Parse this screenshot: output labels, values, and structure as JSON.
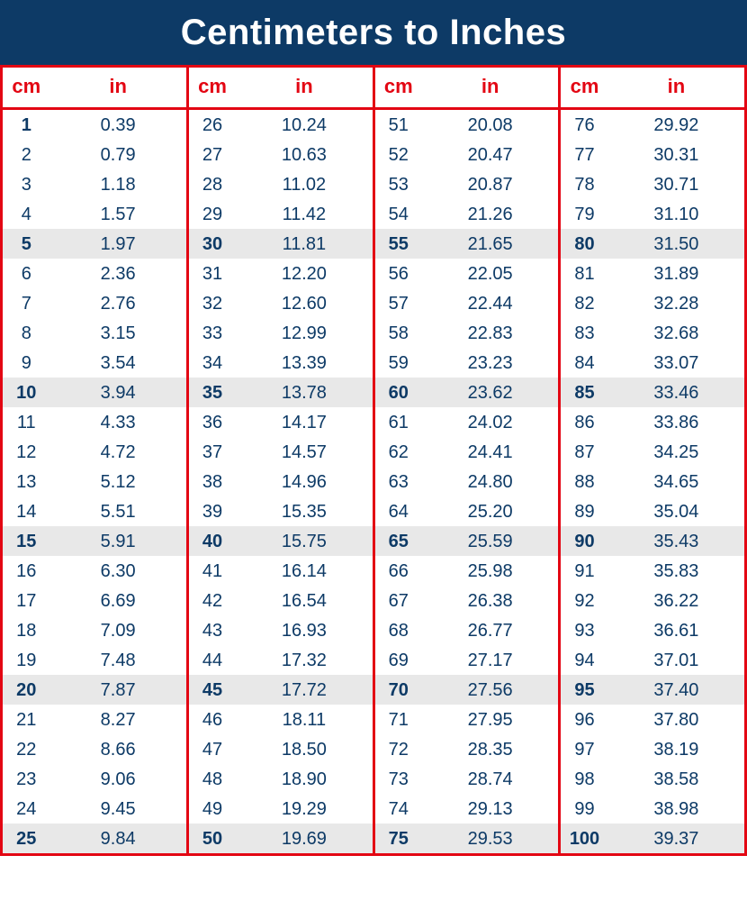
{
  "title": "Centimeters to Inches",
  "colors": {
    "header_bg": "#0d3a66",
    "header_text": "#ffffff",
    "border": "#e30613",
    "th_text": "#e30613",
    "cell_text": "#0d3a66",
    "highlight_bg": "#e8e8e8",
    "row_bg": "#ffffff"
  },
  "headers": {
    "cm": "cm",
    "in": "in"
  },
  "columns": [
    {
      "rows": [
        {
          "cm": "1",
          "in": "0.39",
          "hl": false,
          "bold": true
        },
        {
          "cm": "2",
          "in": "0.79",
          "hl": false,
          "bold": false
        },
        {
          "cm": "3",
          "in": "1.18",
          "hl": false,
          "bold": false
        },
        {
          "cm": "4",
          "in": "1.57",
          "hl": false,
          "bold": false
        },
        {
          "cm": "5",
          "in": "1.97",
          "hl": true,
          "bold": true
        },
        {
          "cm": "6",
          "in": "2.36",
          "hl": false,
          "bold": false
        },
        {
          "cm": "7",
          "in": "2.76",
          "hl": false,
          "bold": false
        },
        {
          "cm": "8",
          "in": "3.15",
          "hl": false,
          "bold": false
        },
        {
          "cm": "9",
          "in": "3.54",
          "hl": false,
          "bold": false
        },
        {
          "cm": "10",
          "in": "3.94",
          "hl": true,
          "bold": true
        },
        {
          "cm": "11",
          "in": "4.33",
          "hl": false,
          "bold": false
        },
        {
          "cm": "12",
          "in": "4.72",
          "hl": false,
          "bold": false
        },
        {
          "cm": "13",
          "in": "5.12",
          "hl": false,
          "bold": false
        },
        {
          "cm": "14",
          "in": "5.51",
          "hl": false,
          "bold": false
        },
        {
          "cm": "15",
          "in": "5.91",
          "hl": true,
          "bold": true
        },
        {
          "cm": "16",
          "in": "6.30",
          "hl": false,
          "bold": false
        },
        {
          "cm": "17",
          "in": "6.69",
          "hl": false,
          "bold": false
        },
        {
          "cm": "18",
          "in": "7.09",
          "hl": false,
          "bold": false
        },
        {
          "cm": "19",
          "in": "7.48",
          "hl": false,
          "bold": false
        },
        {
          "cm": "20",
          "in": "7.87",
          "hl": true,
          "bold": true
        },
        {
          "cm": "21",
          "in": "8.27",
          "hl": false,
          "bold": false
        },
        {
          "cm": "22",
          "in": "8.66",
          "hl": false,
          "bold": false
        },
        {
          "cm": "23",
          "in": "9.06",
          "hl": false,
          "bold": false
        },
        {
          "cm": "24",
          "in": "9.45",
          "hl": false,
          "bold": false
        },
        {
          "cm": "25",
          "in": "9.84",
          "hl": true,
          "bold": true
        }
      ]
    },
    {
      "rows": [
        {
          "cm": "26",
          "in": "10.24",
          "hl": false,
          "bold": false
        },
        {
          "cm": "27",
          "in": "10.63",
          "hl": false,
          "bold": false
        },
        {
          "cm": "28",
          "in": "11.02",
          "hl": false,
          "bold": false
        },
        {
          "cm": "29",
          "in": "11.42",
          "hl": false,
          "bold": false
        },
        {
          "cm": "30",
          "in": "11.81",
          "hl": true,
          "bold": true
        },
        {
          "cm": "31",
          "in": "12.20",
          "hl": false,
          "bold": false
        },
        {
          "cm": "32",
          "in": "12.60",
          "hl": false,
          "bold": false
        },
        {
          "cm": "33",
          "in": "12.99",
          "hl": false,
          "bold": false
        },
        {
          "cm": "34",
          "in": "13.39",
          "hl": false,
          "bold": false
        },
        {
          "cm": "35",
          "in": "13.78",
          "hl": true,
          "bold": true
        },
        {
          "cm": "36",
          "in": "14.17",
          "hl": false,
          "bold": false
        },
        {
          "cm": "37",
          "in": "14.57",
          "hl": false,
          "bold": false
        },
        {
          "cm": "38",
          "in": "14.96",
          "hl": false,
          "bold": false
        },
        {
          "cm": "39",
          "in": "15.35",
          "hl": false,
          "bold": false
        },
        {
          "cm": "40",
          "in": "15.75",
          "hl": true,
          "bold": true
        },
        {
          "cm": "41",
          "in": "16.14",
          "hl": false,
          "bold": false
        },
        {
          "cm": "42",
          "in": "16.54",
          "hl": false,
          "bold": false
        },
        {
          "cm": "43",
          "in": "16.93",
          "hl": false,
          "bold": false
        },
        {
          "cm": "44",
          "in": "17.32",
          "hl": false,
          "bold": false
        },
        {
          "cm": "45",
          "in": "17.72",
          "hl": true,
          "bold": true
        },
        {
          "cm": "46",
          "in": "18.11",
          "hl": false,
          "bold": false
        },
        {
          "cm": "47",
          "in": "18.50",
          "hl": false,
          "bold": false
        },
        {
          "cm": "48",
          "in": "18.90",
          "hl": false,
          "bold": false
        },
        {
          "cm": "49",
          "in": "19.29",
          "hl": false,
          "bold": false
        },
        {
          "cm": "50",
          "in": "19.69",
          "hl": true,
          "bold": true
        }
      ]
    },
    {
      "rows": [
        {
          "cm": "51",
          "in": "20.08",
          "hl": false,
          "bold": false
        },
        {
          "cm": "52",
          "in": "20.47",
          "hl": false,
          "bold": false
        },
        {
          "cm": "53",
          "in": "20.87",
          "hl": false,
          "bold": false
        },
        {
          "cm": "54",
          "in": "21.26",
          "hl": false,
          "bold": false
        },
        {
          "cm": "55",
          "in": "21.65",
          "hl": true,
          "bold": true
        },
        {
          "cm": "56",
          "in": "22.05",
          "hl": false,
          "bold": false
        },
        {
          "cm": "57",
          "in": "22.44",
          "hl": false,
          "bold": false
        },
        {
          "cm": "58",
          "in": "22.83",
          "hl": false,
          "bold": false
        },
        {
          "cm": "59",
          "in": "23.23",
          "hl": false,
          "bold": false
        },
        {
          "cm": "60",
          "in": "23.62",
          "hl": true,
          "bold": true
        },
        {
          "cm": "61",
          "in": "24.02",
          "hl": false,
          "bold": false
        },
        {
          "cm": "62",
          "in": "24.41",
          "hl": false,
          "bold": false
        },
        {
          "cm": "63",
          "in": "24.80",
          "hl": false,
          "bold": false
        },
        {
          "cm": "64",
          "in": "25.20",
          "hl": false,
          "bold": false
        },
        {
          "cm": "65",
          "in": "25.59",
          "hl": true,
          "bold": true
        },
        {
          "cm": "66",
          "in": "25.98",
          "hl": false,
          "bold": false
        },
        {
          "cm": "67",
          "in": "26.38",
          "hl": false,
          "bold": false
        },
        {
          "cm": "68",
          "in": "26.77",
          "hl": false,
          "bold": false
        },
        {
          "cm": "69",
          "in": "27.17",
          "hl": false,
          "bold": false
        },
        {
          "cm": "70",
          "in": "27.56",
          "hl": true,
          "bold": true
        },
        {
          "cm": "71",
          "in": "27.95",
          "hl": false,
          "bold": false
        },
        {
          "cm": "72",
          "in": "28.35",
          "hl": false,
          "bold": false
        },
        {
          "cm": "73",
          "in": "28.74",
          "hl": false,
          "bold": false
        },
        {
          "cm": "74",
          "in": "29.13",
          "hl": false,
          "bold": false
        },
        {
          "cm": "75",
          "in": "29.53",
          "hl": true,
          "bold": true
        }
      ]
    },
    {
      "rows": [
        {
          "cm": "76",
          "in": "29.92",
          "hl": false,
          "bold": false
        },
        {
          "cm": "77",
          "in": "30.31",
          "hl": false,
          "bold": false
        },
        {
          "cm": "78",
          "in": "30.71",
          "hl": false,
          "bold": false
        },
        {
          "cm": "79",
          "in": "31.10",
          "hl": false,
          "bold": false
        },
        {
          "cm": "80",
          "in": "31.50",
          "hl": true,
          "bold": true
        },
        {
          "cm": "81",
          "in": "31.89",
          "hl": false,
          "bold": false
        },
        {
          "cm": "82",
          "in": "32.28",
          "hl": false,
          "bold": false
        },
        {
          "cm": "83",
          "in": "32.68",
          "hl": false,
          "bold": false
        },
        {
          "cm": "84",
          "in": "33.07",
          "hl": false,
          "bold": false
        },
        {
          "cm": "85",
          "in": "33.46",
          "hl": true,
          "bold": true
        },
        {
          "cm": "86",
          "in": "33.86",
          "hl": false,
          "bold": false
        },
        {
          "cm": "87",
          "in": "34.25",
          "hl": false,
          "bold": false
        },
        {
          "cm": "88",
          "in": "34.65",
          "hl": false,
          "bold": false
        },
        {
          "cm": "89",
          "in": "35.04",
          "hl": false,
          "bold": false
        },
        {
          "cm": "90",
          "in": "35.43",
          "hl": true,
          "bold": true
        },
        {
          "cm": "91",
          "in": "35.83",
          "hl": false,
          "bold": false
        },
        {
          "cm": "92",
          "in": "36.22",
          "hl": false,
          "bold": false
        },
        {
          "cm": "93",
          "in": "36.61",
          "hl": false,
          "bold": false
        },
        {
          "cm": "94",
          "in": "37.01",
          "hl": false,
          "bold": false
        },
        {
          "cm": "95",
          "in": "37.40",
          "hl": true,
          "bold": true
        },
        {
          "cm": "96",
          "in": "37.80",
          "hl": false,
          "bold": false
        },
        {
          "cm": "97",
          "in": "38.19",
          "hl": false,
          "bold": false
        },
        {
          "cm": "98",
          "in": "38.58",
          "hl": false,
          "bold": false
        },
        {
          "cm": "99",
          "in": "38.98",
          "hl": false,
          "bold": false
        },
        {
          "cm": "100",
          "in": "39.37",
          "hl": true,
          "bold": true
        }
      ]
    }
  ]
}
